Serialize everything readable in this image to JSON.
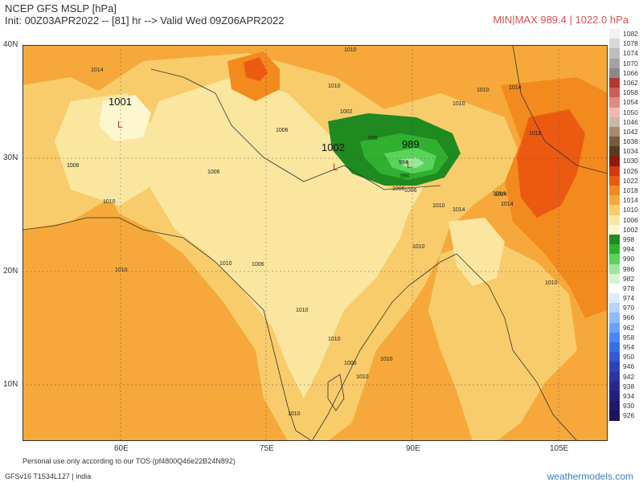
{
  "header": {
    "title": "NCEP GFS MSLP [hPa]",
    "subtitle": "Init: 00Z03APR2022 -- [81] hr --> Valid Wed 09Z06APR2022",
    "minmax": "MIN|MAX 989.4 | 1022.0 hPa"
  },
  "map": {
    "lat_labels": [
      "40N",
      "30N",
      "20N",
      "10N"
    ],
    "lon_labels": [
      "60E",
      "75E",
      "90E",
      "105E"
    ],
    "pressure_centers": [
      {
        "label": "1001",
        "marker": "L"
      },
      {
        "label": "1002",
        "marker": "L"
      },
      {
        "label": "989",
        "marker": "L"
      }
    ],
    "contour_labels": [
      "1014",
      "1010",
      "1006",
      "1006",
      "1002",
      "1006",
      "1014",
      "1010",
      "1010",
      "1010",
      "1014",
      "1018",
      "1014",
      "1006",
      "998",
      "994",
      "990",
      "1006",
      "1010",
      "1014",
      "1010",
      "1006",
      "1010",
      "1010",
      "1006",
      "1010",
      "1010",
      "1010",
      "1014",
      "1010",
      "1010",
      "1010",
      "1010"
    ]
  },
  "legend": {
    "items": [
      {
        "label": "1082",
        "color": "#f2f2f2"
      },
      {
        "label": "1078",
        "color": "#d8d8d8"
      },
      {
        "label": "1074",
        "color": "#bdbdbd"
      },
      {
        "label": "1070",
        "color": "#a3a3a3"
      },
      {
        "label": "1066",
        "color": "#8a8a8a"
      },
      {
        "label": "1062",
        "color": "#b03a2e"
      },
      {
        "label": "1058",
        "color": "#cd5c5c"
      },
      {
        "label": "1054",
        "color": "#e08a80"
      },
      {
        "label": "1050",
        "color": "#f2b8b0"
      },
      {
        "label": "1046",
        "color": "#c9b8a8"
      },
      {
        "label": "1042",
        "color": "#a68a70"
      },
      {
        "label": "1038",
        "color": "#7a5a3c"
      },
      {
        "label": "1034",
        "color": "#5a3a20"
      },
      {
        "label": "1030",
        "color": "#8b1a0a"
      },
      {
        "label": "1026",
        "color": "#d03a10"
      },
      {
        "label": "1022",
        "color": "#ec5a12"
      },
      {
        "label": "1018",
        "color": "#f28a1e"
      },
      {
        "label": "1014",
        "color": "#f6a93a"
      },
      {
        "label": "1010",
        "color": "#f8cc6a"
      },
      {
        "label": "1006",
        "color": "#fbe6a0"
      },
      {
        "label": "1002",
        "color": "#fdf6cf"
      },
      {
        "label": "998",
        "color": "#1f8a1f"
      },
      {
        "label": "994",
        "color": "#2fb02f"
      },
      {
        "label": "990",
        "color": "#5ad45a"
      },
      {
        "label": "986",
        "color": "#9ae79a"
      },
      {
        "label": "982",
        "color": "#d2f5d2"
      },
      {
        "label": "978",
        "color": "#ffffff"
      },
      {
        "label": "974",
        "color": "#dcecff"
      },
      {
        "label": "970",
        "color": "#b7d6ff"
      },
      {
        "label": "966",
        "color": "#8fbcff"
      },
      {
        "label": "962",
        "color": "#6aa2ff"
      },
      {
        "label": "958",
        "color": "#4a86f5"
      },
      {
        "label": "954",
        "color": "#3a6ee6"
      },
      {
        "label": "950",
        "color": "#3358cf"
      },
      {
        "label": "946",
        "color": "#2d44b8"
      },
      {
        "label": "942",
        "color": "#2a35a3"
      },
      {
        "label": "938",
        "color": "#27288f"
      },
      {
        "label": "934",
        "color": "#23207c"
      },
      {
        "label": "930",
        "color": "#201a6b"
      },
      {
        "label": "926",
        "color": "#1c145a"
      }
    ]
  },
  "footer": {
    "tos": "Personal use only according to our TOS (pf4800Q46e22B24N892)",
    "model": "GFSv16 T1534L127 | india",
    "brand": "weathermodels.com"
  }
}
